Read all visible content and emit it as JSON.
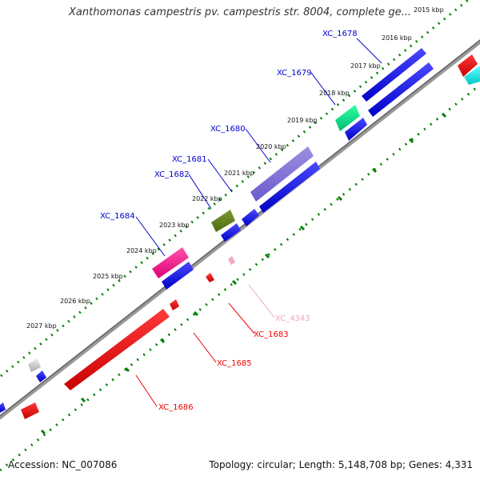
{
  "title": "Xanthomonas campestris pv. campestris str. 8004, complete ge...",
  "footer": {
    "accession": "Accession: NC_007086",
    "summary": "Topology: circular; Length: 5,148,708 bp; Genes: 4,331"
  },
  "ticks": [
    "2015 kbp",
    "2016 kbp",
    "2017 kbp",
    "2018 kbp",
    "2019 kbp",
    "2020 kbp",
    "2021 kbp",
    "2022 kbp",
    "2023 kbp",
    "2024 kbp",
    "2025 kbp",
    "2026 kbp",
    "2027 kbp"
  ],
  "genes_top": [
    "XC_1678",
    "XC_1679",
    "XC_1680",
    "XC_1681",
    "XC_1682",
    "XC_1684"
  ],
  "genes_bottom": [
    "XC_4343",
    "XC_1683",
    "XC_1685",
    "XC_1686"
  ],
  "colors": {
    "forward": "#0000ee",
    "reverse": "#ee0000",
    "pink": "#f0a8c0",
    "backbone": "#7f7f7f",
    "tick": "#008000"
  }
}
